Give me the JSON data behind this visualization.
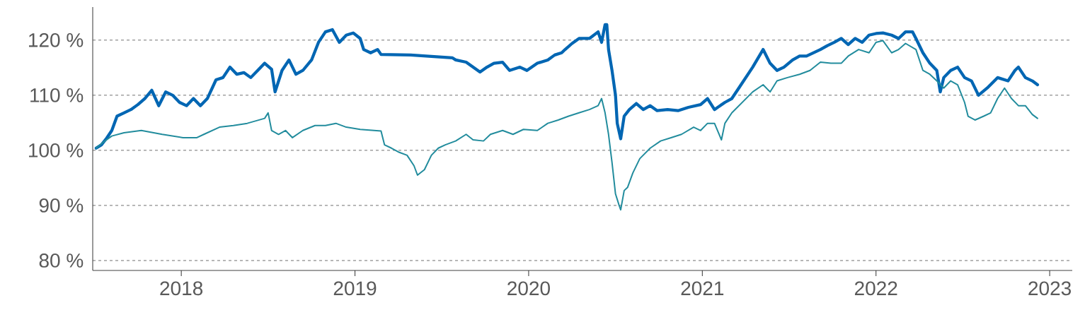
{
  "chart_data": {
    "type": "line",
    "xlim": [
      2017.49,
      2023.13
    ],
    "ylim": [
      78.2,
      126
    ],
    "xticks": [
      2018,
      2019,
      2020,
      2021,
      2022,
      2023
    ],
    "yticks": [
      {
        "value": 80,
        "label": "80 %"
      },
      {
        "value": 90,
        "label": "90 %"
      },
      {
        "value": 100,
        "label": "100 %"
      },
      {
        "value": 110,
        "label": "110 %"
      },
      {
        "value": 120,
        "label": "120 %"
      }
    ],
    "grid": "y",
    "marker": "none",
    "line_style": "solid",
    "series": [
      {
        "color": "#0066b3",
        "x": [
          2017.51,
          2017.54,
          2017.57,
          2017.6,
          2017.63,
          2017.67,
          2017.71,
          2017.75,
          2017.79,
          2017.83,
          2017.87,
          2017.91,
          2017.95,
          2017.99,
          2018.03,
          2018.07,
          2018.11,
          2018.15,
          2018.2,
          2018.24,
          2018.28,
          2018.32,
          2018.36,
          2018.4,
          2018.44,
          2018.48,
          2018.52,
          2018.54,
          2018.58,
          2018.62,
          2018.66,
          2018.7,
          2018.75,
          2018.79,
          2018.83,
          2018.87,
          2018.91,
          2018.95,
          2018.99,
          2019.03,
          2019.05,
          2019.09,
          2019.13,
          2019.15,
          2019.32,
          2019.56,
          2019.58,
          2019.64,
          2019.68,
          2019.72,
          2019.76,
          2019.8,
          2019.85,
          2019.89,
          2019.95,
          2019.99,
          2020.05,
          2020.11,
          2020.15,
          2020.19,
          2020.21,
          2020.25,
          2020.29,
          2020.35,
          2020.4,
          2020.42,
          2020.44,
          2020.45,
          2020.46,
          2020.48,
          2020.5,
          2020.51,
          2020.53,
          2020.55,
          2020.58,
          2020.62,
          2020.66,
          2020.7,
          2020.74,
          2020.8,
          2020.86,
          2020.92,
          2020.99,
          2021.03,
          2021.07,
          2021.13,
          2021.17,
          2021.21,
          2021.25,
          2021.29,
          2021.35,
          2021.39,
          2021.43,
          2021.47,
          2021.52,
          2021.56,
          2021.6,
          2021.64,
          2021.68,
          2021.72,
          2021.76,
          2021.8,
          2021.84,
          2021.88,
          2021.92,
          2021.96,
          2022.0,
          2022.04,
          2022.09,
          2022.13,
          2022.17,
          2022.21,
          2022.23,
          2022.27,
          2022.31,
          2022.35,
          2022.37,
          2022.39,
          2022.43,
          2022.47,
          2022.51,
          2022.55,
          2022.59,
          2022.64,
          2022.7,
          2022.76,
          2022.8,
          2022.82,
          2022.86,
          2022.9,
          2022.93
        ],
        "values": [
          100.4,
          101.0,
          102.2,
          103.6,
          106.2,
          106.8,
          107.4,
          108.3,
          109.4,
          110.9,
          108.1,
          110.6,
          110.0,
          108.7,
          108.1,
          109.4,
          108.1,
          109.4,
          112.8,
          113.2,
          115.1,
          113.8,
          114.1,
          113.2,
          114.5,
          115.8,
          114.7,
          110.6,
          114.5,
          116.4,
          113.8,
          114.5,
          116.4,
          119.6,
          121.5,
          121.9,
          119.6,
          120.9,
          121.3,
          120.3,
          118.3,
          117.7,
          118.3,
          117.4,
          117.3,
          116.8,
          116.4,
          116.0,
          115.1,
          114.2,
          115.1,
          115.8,
          116.0,
          114.5,
          115.1,
          114.5,
          115.8,
          116.4,
          117.3,
          117.7,
          118.3,
          119.4,
          120.3,
          120.3,
          121.5,
          119.6,
          122.8,
          122.8,
          118.3,
          114.5,
          110.0,
          104.9,
          102.1,
          106.2,
          107.4,
          108.5,
          107.4,
          108.1,
          107.2,
          107.4,
          107.2,
          107.8,
          108.3,
          109.4,
          107.4,
          108.7,
          109.4,
          111.3,
          113.2,
          115.1,
          118.3,
          115.8,
          114.5,
          115.1,
          116.4,
          117.1,
          117.1,
          117.7,
          118.3,
          119.0,
          119.6,
          120.3,
          119.2,
          120.3,
          119.6,
          120.9,
          121.2,
          121.3,
          120.9,
          120.3,
          121.5,
          121.5,
          120.3,
          117.7,
          115.8,
          114.5,
          110.6,
          113.2,
          114.5,
          115.1,
          113.2,
          112.6,
          110.0,
          111.3,
          113.2,
          112.6,
          114.5,
          115.1,
          113.2,
          112.6,
          111.9
        ]
      },
      {
        "color": "#228c9d",
        "x": [
          2017.51,
          2017.56,
          2017.6,
          2017.67,
          2017.77,
          2017.89,
          2018.01,
          2018.09,
          2018.13,
          2018.22,
          2018.3,
          2018.38,
          2018.48,
          2018.5,
          2018.52,
          2018.56,
          2018.6,
          2018.64,
          2018.7,
          2018.77,
          2018.83,
          2018.89,
          2018.95,
          2019.03,
          2019.11,
          2019.15,
          2019.17,
          2019.21,
          2019.25,
          2019.3,
          2019.34,
          2019.36,
          2019.4,
          2019.44,
          2019.48,
          2019.52,
          2019.58,
          2019.64,
          2019.68,
          2019.74,
          2019.78,
          2019.85,
          2019.91,
          2019.97,
          2020.05,
          2020.11,
          2020.17,
          2020.23,
          2020.29,
          2020.35,
          2020.4,
          2020.42,
          2020.44,
          2020.46,
          2020.48,
          2020.5,
          2020.52,
          2020.53,
          2020.55,
          2020.57,
          2020.6,
          2020.64,
          2020.7,
          2020.76,
          2020.82,
          2020.88,
          2020.95,
          2020.99,
          2021.03,
          2021.07,
          2021.11,
          2021.13,
          2021.17,
          2021.23,
          2021.29,
          2021.35,
          2021.39,
          2021.43,
          2021.49,
          2021.56,
          2021.62,
          2021.68,
          2021.74,
          2021.8,
          2021.84,
          2021.9,
          2021.96,
          2022.0,
          2022.04,
          2022.09,
          2022.13,
          2022.17,
          2022.23,
          2022.27,
          2022.31,
          2022.35,
          2022.39,
          2022.43,
          2022.47,
          2022.51,
          2022.53,
          2022.57,
          2022.62,
          2022.66,
          2022.7,
          2022.74,
          2022.78,
          2022.82,
          2022.86,
          2022.9,
          2022.93
        ],
        "values": [
          100.4,
          101.7,
          102.6,
          103.2,
          103.6,
          102.9,
          102.3,
          102.3,
          102.9,
          104.2,
          104.5,
          104.9,
          105.8,
          106.8,
          103.6,
          102.9,
          103.6,
          102.3,
          103.6,
          104.5,
          104.5,
          104.9,
          104.2,
          103.8,
          103.6,
          103.5,
          101.0,
          100.4,
          99.7,
          99.1,
          97.2,
          95.5,
          96.5,
          99.1,
          100.4,
          101.0,
          101.7,
          102.9,
          101.9,
          101.7,
          102.9,
          103.6,
          102.9,
          103.8,
          103.6,
          104.9,
          105.5,
          106.2,
          106.8,
          107.4,
          108.1,
          109.4,
          106.8,
          102.9,
          97.8,
          92.1,
          90.1,
          89.2,
          92.7,
          93.3,
          95.9,
          98.5,
          100.4,
          101.7,
          102.3,
          102.9,
          104.2,
          103.6,
          104.9,
          104.9,
          101.9,
          104.9,
          106.8,
          108.7,
          110.6,
          111.9,
          110.6,
          112.6,
          113.2,
          113.8,
          114.5,
          116.0,
          115.8,
          115.8,
          117.1,
          118.3,
          117.7,
          119.6,
          119.9,
          117.7,
          118.3,
          119.4,
          118.3,
          114.5,
          113.8,
          112.6,
          111.3,
          112.6,
          111.9,
          108.7,
          106.2,
          105.5,
          106.2,
          106.8,
          109.4,
          111.3,
          109.4,
          108.1,
          108.1,
          106.5,
          105.8
        ]
      }
    ]
  }
}
